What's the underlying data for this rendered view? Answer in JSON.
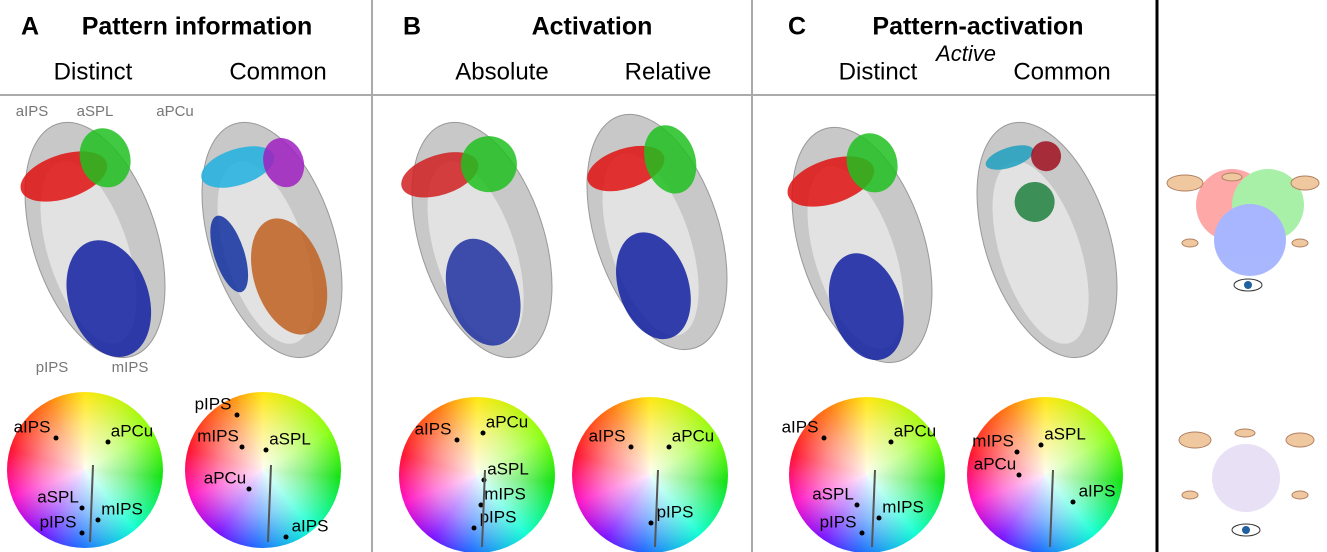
{
  "panels": [
    {
      "letter": "A",
      "title": "Pattern information",
      "columns": [
        "Distinct",
        "Common"
      ],
      "brain_labels": [
        "aIPS",
        "aSPL",
        "aPCu",
        "pIPS",
        "mIPS"
      ],
      "wheels": [
        {
          "labels": [
            "aIPS",
            "aPCu",
            "aSPL",
            "pIPS",
            "mIPS"
          ]
        },
        {
          "labels": [
            "pIPS",
            "mIPS",
            "aSPL",
            "aPCu",
            "aIPS"
          ]
        }
      ]
    },
    {
      "letter": "B",
      "title": "Activation",
      "columns": [
        "Absolute",
        "Relative"
      ],
      "wheels": [
        {
          "labels": [
            "aIPS",
            "aPCu",
            "aSPL",
            "mIPS",
            "pIPS"
          ]
        },
        {
          "labels": [
            "aIPS",
            "aPCu",
            "pIPS"
          ]
        }
      ]
    },
    {
      "letter": "C",
      "title": "Pattern-activation",
      "subtitle": "Active",
      "columns": [
        "Distinct",
        "Common"
      ],
      "wheels": [
        {
          "labels": [
            "aIPS",
            "aPCu",
            "aSPL",
            "pIPS",
            "mIPS"
          ]
        },
        {
          "labels": [
            "mIPS",
            "aSPL",
            "aPCu",
            "aIPS"
          ]
        }
      ]
    }
  ]
}
